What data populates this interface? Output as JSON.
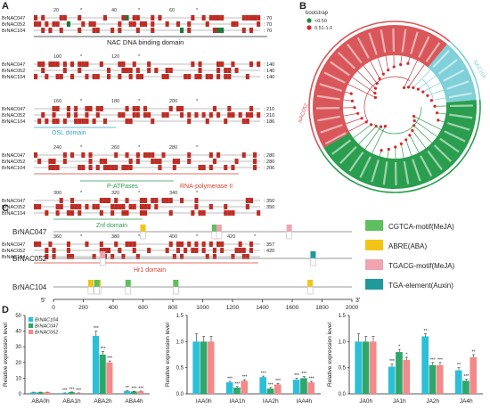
{
  "panel_letters": {
    "a": "A",
    "b": "B",
    "c": "C",
    "d": "D"
  },
  "panel_a": {
    "seq_names": [
      "BrNAC047",
      "BrNAC052",
      "BrNAC104"
    ],
    "blocks": [
      {
        "ruler": [
          "20",
          "40",
          "60"
        ],
        "ends": [
          "70",
          "70",
          "70"
        ],
        "domain": "NAC DNA binding domain",
        "domain_color": "#222222"
      },
      {
        "ruler": [
          "100",
          "120"
        ],
        "ends": [
          "140",
          "140",
          "140"
        ],
        "domain": "",
        "domain_color": "#222222"
      },
      {
        "ruler": [
          "160",
          "180",
          "200"
        ],
        "ends": [
          "210",
          "210",
          "186"
        ],
        "domain": "OSL domain",
        "domain_color": "#35a7c9"
      },
      {
        "ruler": [
          "240",
          "260",
          "280"
        ],
        "ends": [
          "280",
          "280",
          "206"
        ],
        "domain": "P-ATPases",
        "domain_color": "#2e9e4f",
        "domain2": "RNA-polymerase II",
        "domain2_color": "#d8412f"
      },
      {
        "ruler": [
          "300",
          "320",
          "340"
        ],
        "ends": [
          "350",
          "350",
          ""
        ],
        "domain": "Znf domain",
        "domain_color": "#2e9e4f"
      },
      {
        "ruler": [
          "360",
          "380",
          "400",
          "420"
        ],
        "ends": [
          "357",
          "420",
          ""
        ],
        "domain": "Hr1 domain",
        "domain_color": "#d8412f"
      }
    ]
  },
  "panel_b": {
    "legend_title": "bootstrap",
    "legend_items": [
      "<0.50",
      "0.51-1.0"
    ],
    "legend_colors": [
      "#1b8a3e",
      "#d9262a"
    ],
    "clade_labels": [
      "NAC052",
      "NAC104",
      "NAC047"
    ],
    "clade_colors": [
      "#d9575a",
      "#7fd0d8",
      "#2a9e4e"
    ]
  },
  "panel_c": {
    "genes": [
      "BrNAC047",
      "BrNAC052",
      "BrNAC104"
    ],
    "axis_ticks": [
      "0",
      "200",
      "400",
      "600",
      "800",
      "1000",
      "1200",
      "1400",
      "1600",
      "1800",
      "2000"
    ],
    "five": "5'",
    "three": "3'",
    "legend": [
      {
        "label": "CGTCA-motif(MeJA)",
        "color": "#5cc05e"
      },
      {
        "label": "ABRE(ABA)",
        "color": "#f2c418"
      },
      {
        "label": "TGACG-motif(MeJA)",
        "color": "#f0a4b0"
      },
      {
        "label": "TGA-element(Auxin)",
        "color": "#1e9a9a"
      }
    ]
  },
  "chart_data": [
    {
      "type": "bar",
      "title": "",
      "ylabel": "Relative expression level",
      "categories": [
        "ABA0h",
        "ABA1h",
        "ABA2h",
        "ABA4h"
      ],
      "ylim": [
        0,
        50
      ],
      "yticks": [
        "0",
        "10",
        "20",
        "30",
        "40",
        "50"
      ],
      "series": [
        {
          "name": "BrNAC104",
          "color": "#2bbfd9",
          "values": [
            1,
            0.5,
            37,
            1.8
          ],
          "errors": [
            0.1,
            0.1,
            3,
            0.2
          ],
          "sig": [
            "",
            "***",
            "***",
            "**"
          ]
        },
        {
          "name": "BrNAC047",
          "color": "#2ea76a",
          "values": [
            1,
            1.1,
            25,
            1.5
          ],
          "errors": [
            0.1,
            0.1,
            2,
            0.1
          ],
          "sig": [
            "",
            "***",
            "***",
            "***"
          ]
        },
        {
          "name": "BrNAC052",
          "color": "#f28a8a",
          "values": [
            1,
            0.55,
            20,
            1.6
          ],
          "errors": [
            0.1,
            0.05,
            1,
            0.15
          ],
          "sig": [
            "",
            "***",
            "***",
            "***"
          ]
        }
      ],
      "break_axis": true
    },
    {
      "type": "bar",
      "title": "",
      "ylabel": "Relative expression level",
      "categories": [
        "IAA0h",
        "IAA1h",
        "IAA2h",
        "IAA4h"
      ],
      "ylim": [
        0,
        1.5
      ],
      "yticks": [
        "0.0",
        "0.5",
        "1.0",
        "1.5"
      ],
      "series": [
        {
          "name": "BrNAC104",
          "color": "#2bbfd9",
          "values": [
            1,
            0.22,
            0.32,
            0.27
          ],
          "errors": [
            0.15,
            0.02,
            0.02,
            0.03
          ],
          "sig": [
            "",
            "***",
            "***",
            "***"
          ]
        },
        {
          "name": "BrNAC047",
          "color": "#2ea76a",
          "values": [
            1,
            0.12,
            0.1,
            0.3
          ],
          "errors": [
            0.1,
            0.02,
            0.02,
            0.03
          ],
          "sig": [
            "",
            "***",
            "***",
            "***"
          ]
        },
        {
          "name": "BrNAC052",
          "color": "#f28a8a",
          "values": [
            1,
            0.25,
            0.18,
            0.22
          ],
          "errors": [
            0.1,
            0.02,
            0.02,
            0.02
          ],
          "sig": [
            "",
            "***",
            "***",
            "***"
          ]
        }
      ]
    },
    {
      "type": "bar",
      "title": "",
      "ylabel": "Relative expression level",
      "categories": [
        "JA0h",
        "JA1h",
        "JA2h",
        "JA4h"
      ],
      "ylim": [
        0,
        1.5
      ],
      "yticks": [
        "0.0",
        "0.5",
        "1.0",
        "1.5"
      ],
      "series": [
        {
          "name": "BrNAC104",
          "color": "#2bbfd9",
          "values": [
            1,
            0.52,
            1.1,
            0.45
          ],
          "errors": [
            0.15,
            0.05,
            0.05,
            0.05
          ],
          "sig": [
            "",
            "***",
            "**",
            "**"
          ]
        },
        {
          "name": "BrNAC047",
          "color": "#2ea76a",
          "values": [
            1,
            0.8,
            0.55,
            0.25
          ],
          "errors": [
            0.1,
            0.05,
            0.05,
            0.03
          ],
          "sig": [
            "",
            "*",
            "***",
            "***"
          ]
        },
        {
          "name": "BrNAC052",
          "color": "#f28a8a",
          "values": [
            1,
            0.65,
            0.55,
            0.7
          ],
          "errors": [
            0.1,
            0.05,
            0.05,
            0.05
          ],
          "sig": [
            "",
            "*",
            "***",
            "**"
          ]
        }
      ]
    }
  ]
}
